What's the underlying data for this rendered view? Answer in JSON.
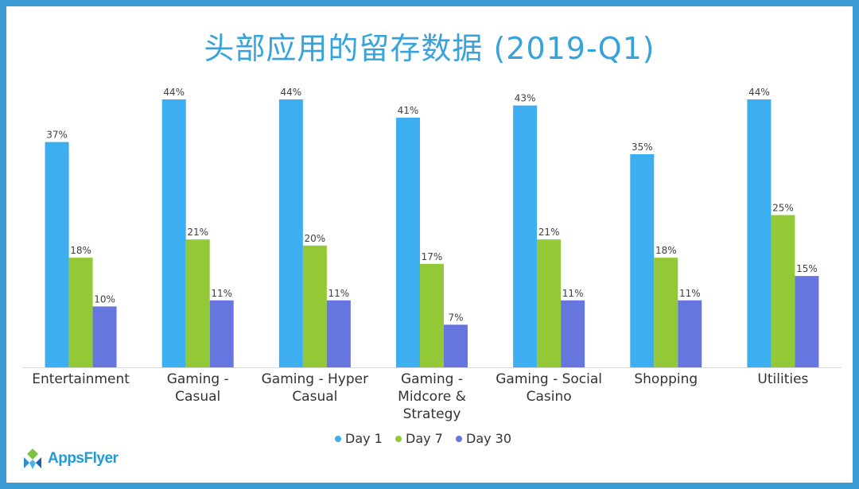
{
  "chart_data": {
    "type": "bar",
    "title": "头部应用的留存数据 (2019-Q1)",
    "categories": [
      [
        "Entertainment"
      ],
      [
        "Gaming -",
        "Casual"
      ],
      [
        "Gaming - Hyper",
        "Casual"
      ],
      [
        "Gaming -",
        "Midcore &",
        "Strategy"
      ],
      [
        "Gaming - Social",
        "Casino"
      ],
      [
        "Shopping"
      ],
      [
        "Utilities"
      ]
    ],
    "series": [
      {
        "name": "Day 1",
        "color": "#3daef0",
        "values": [
          37,
          44,
          44,
          41,
          43,
          35,
          44
        ]
      },
      {
        "name": "Day 7",
        "color": "#93c936",
        "values": [
          18,
          21,
          20,
          17,
          21,
          18,
          25
        ]
      },
      {
        "name": "Day 30",
        "color": "#6776df",
        "values": [
          10,
          11,
          11,
          7,
          11,
          11,
          15
        ]
      }
    ],
    "value_suffix": "%",
    "ylim": [
      0,
      44
    ],
    "grid": false,
    "legend_position": "bottom"
  },
  "logo": {
    "text": "AppsFlyer",
    "icon": "appsflyer-logo-icon"
  }
}
